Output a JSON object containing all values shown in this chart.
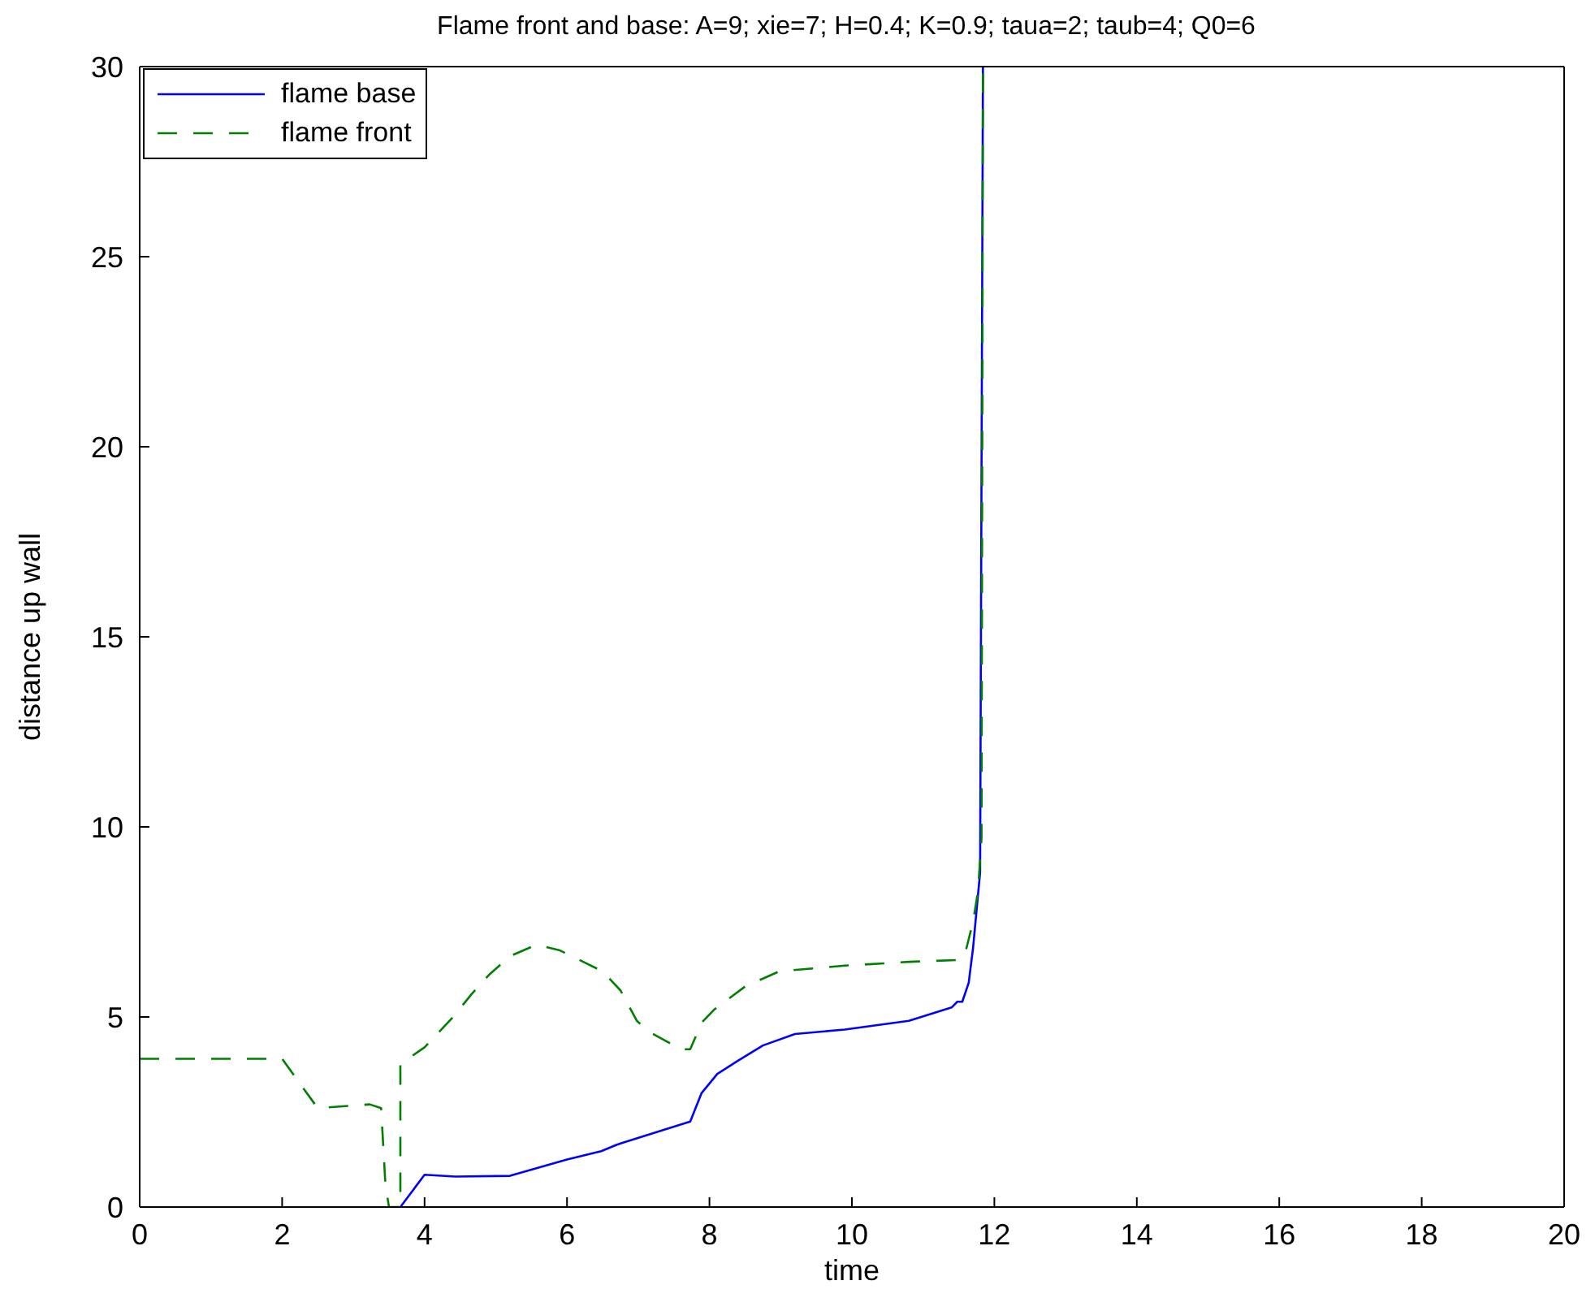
{
  "chart_data": {
    "type": "line",
    "title": "Flame front and base:  A=9;  xie=7;  H=0.4;  K=0.9;  taua=2;  taub=4;  Q0=6",
    "xlabel": "time",
    "ylabel": "distance up wall",
    "xlim": [
      0,
      20
    ],
    "xticks": [
      0,
      2,
      4,
      6,
      8,
      10,
      12,
      14,
      16,
      18,
      20
    ],
    "ylim": [
      0,
      30
    ],
    "yticks": [
      0,
      5,
      10,
      15,
      20,
      25,
      30
    ],
    "legend": "top left",
    "series": [
      {
        "name": "flame base",
        "color": "#0000ff",
        "line_style": "solid",
        "x": [
          3.66,
          4.0,
          4.43,
          5.2,
          6.0,
          6.48,
          6.7,
          7.73,
          7.89,
          8.11,
          8.4,
          8.75,
          9.2,
          9.9,
          10.8,
          11.4,
          11.48,
          11.55,
          11.64,
          11.7,
          11.77,
          11.8,
          11.84
        ],
        "values": [
          0,
          0.85,
          0.8,
          0.82,
          1.25,
          1.47,
          1.64,
          2.25,
          3.0,
          3.5,
          3.85,
          4.25,
          4.55,
          4.67,
          4.9,
          5.25,
          5.4,
          5.4,
          5.9,
          6.8,
          8.2,
          8.8,
          30
        ]
      },
      {
        "name": "flame front",
        "color": "#008000",
        "line_style": "dashed",
        "x": [
          0,
          2.0,
          2.5,
          3.23,
          3.39,
          3.45,
          3.5,
          3.66,
          3.66,
          4.0,
          4.4,
          4.66,
          4.9,
          5.2,
          5.57,
          5.9,
          6.5,
          6.75,
          6.98,
          7.16,
          7.6,
          7.73,
          7.89,
          8.07,
          8.5,
          8.98,
          9.9,
          10.8,
          11.5,
          11.6,
          11.7,
          11.77,
          11.82,
          11.84
        ],
        "values": [
          3.9,
          3.9,
          2.6,
          2.7,
          2.6,
          0.6,
          0,
          0,
          3.76,
          4.2,
          5.0,
          5.6,
          6.1,
          6.6,
          6.9,
          6.75,
          6.2,
          5.7,
          4.9,
          4.6,
          4.15,
          4.15,
          4.85,
          5.2,
          5.8,
          6.2,
          6.35,
          6.45,
          6.5,
          6.75,
          7.5,
          8.3,
          9.7,
          30
        ]
      }
    ]
  }
}
